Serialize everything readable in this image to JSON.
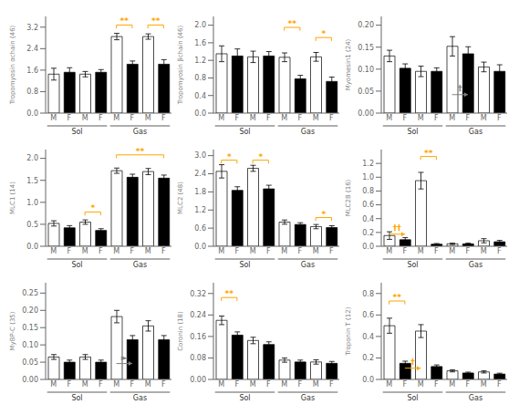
{
  "chart_data": [
    {
      "type": "bar",
      "ylabel": "Tropomyosin αchain (46)",
      "categories": [
        "M",
        "F",
        "M",
        "F",
        "M",
        "F",
        "M",
        "F"
      ],
      "values": [
        1.45,
        1.52,
        1.45,
        1.52,
        2.85,
        1.82,
        2.85,
        1.82
      ],
      "errors": [
        0.22,
        0.17,
        0.1,
        0.1,
        0.12,
        0.12,
        0.1,
        0.17
      ],
      "colors": [
        "white",
        "black",
        "white",
        "black",
        "white",
        "black",
        "white",
        "black"
      ],
      "ylim": [
        0.0,
        3.6
      ],
      "yticks": [
        {
          "value": 0.0,
          "label": "0.0"
        },
        0.8,
        1.6,
        2.4,
        3.2
      ],
      "grid": false,
      "annotations": [
        {
          "type": "group",
          "from": 0,
          "to": 3,
          "label": "Sol"
        },
        {
          "type": "group",
          "from": 4,
          "to": 7,
          "label": "Gas"
        },
        {
          "type": "bracket",
          "from": 4,
          "to": 5,
          "y": 3.28,
          "label": "**",
          "color": "orange"
        },
        {
          "type": "bracket",
          "from": 6,
          "to": 7,
          "y": 3.28,
          "label": "**",
          "color": "orange"
        }
      ]
    },
    {
      "type": "bar",
      "ylabel": "Tropomyosin βchain (46)",
      "categories": [
        "M",
        "F",
        "M",
        "F",
        "M",
        "F",
        "M",
        "F"
      ],
      "values": [
        1.35,
        1.3,
        1.28,
        1.3,
        1.27,
        0.78,
        1.28,
        0.72
      ],
      "errors": [
        0.18,
        0.16,
        0.13,
        0.1,
        0.1,
        0.08,
        0.1,
        0.1
      ],
      "colors": [
        "white",
        "black",
        "white",
        "black",
        "white",
        "black",
        "white",
        "black"
      ],
      "ylim": [
        0.0,
        2.2
      ],
      "yticks": [
        {
          "value": 0.0,
          "label": "0.0"
        },
        0.4,
        0.8,
        1.2,
        1.6,
        {
          "value": 2.0,
          "label": "2.0"
        }
      ],
      "grid": false,
      "annotations": [
        {
          "type": "group",
          "from": 0,
          "to": 3,
          "label": "Sol"
        },
        {
          "type": "group",
          "from": 4,
          "to": 7,
          "label": "Gas"
        },
        {
          "type": "bracket",
          "from": 4,
          "to": 5,
          "y": 1.95,
          "label": "**",
          "color": "orange"
        },
        {
          "type": "bracket",
          "from": 6,
          "to": 7,
          "y": 1.72,
          "label": "*",
          "color": "orange"
        }
      ]
    },
    {
      "type": "bar",
      "ylabel": "Myomesin1 (24)",
      "categories": [
        "M",
        "F",
        "M",
        "F",
        "M",
        "F",
        "M",
        "F"
      ],
      "values": [
        0.13,
        0.102,
        0.095,
        0.095,
        0.152,
        0.135,
        0.105,
        0.095
      ],
      "errors": [
        0.013,
        0.01,
        0.012,
        0.008,
        0.022,
        0.016,
        0.011,
        0.015
      ],
      "colors": [
        "white",
        "black",
        "white",
        "black",
        "white",
        "black",
        "white",
        "black"
      ],
      "ylim": [
        0.0,
        0.22
      ],
      "yticks": [
        {
          "value": 0.0,
          "label": "0.00"
        },
        0.05,
        {
          "value": 0.1,
          "label": "0.10"
        },
        0.15,
        {
          "value": 0.2,
          "label": "0.20"
        }
      ],
      "grid": false,
      "annotations": [
        {
          "type": "group",
          "from": 0,
          "to": 3,
          "label": "Sol"
        },
        {
          "type": "group",
          "from": 4,
          "to": 7,
          "label": "Gas"
        },
        {
          "type": "arrow",
          "from": 4,
          "to": 5,
          "y": 0.042,
          "label": "†",
          "color": "gray"
        }
      ]
    },
    {
      "type": "bar",
      "ylabel": "MLC1 (14)",
      "categories": [
        "M",
        "F",
        "M",
        "F",
        "M",
        "F",
        "M",
        "F"
      ],
      "values": [
        0.52,
        0.42,
        0.55,
        0.36,
        1.72,
        1.57,
        1.7,
        1.55
      ],
      "errors": [
        0.06,
        0.05,
        0.05,
        0.04,
        0.06,
        0.07,
        0.07,
        0.07
      ],
      "colors": [
        "white",
        "black",
        "white",
        "black",
        "white",
        "black",
        "white",
        "black"
      ],
      "ylim": [
        0.0,
        2.2
      ],
      "yticks": [
        {
          "value": 0.0,
          "label": "0.0"
        },
        0.5,
        {
          "value": 1.0,
          "label": "1.0"
        },
        1.5,
        {
          "value": 2.0,
          "label": "2.0"
        }
      ],
      "grid": false,
      "annotations": [
        {
          "type": "group",
          "from": 0,
          "to": 3,
          "label": "Sol"
        },
        {
          "type": "group",
          "from": 4,
          "to": 7,
          "label": "Gas"
        },
        {
          "type": "bracket",
          "from": 2,
          "to": 3,
          "y": 0.78,
          "label": "*",
          "color": "orange"
        },
        {
          "type": "bracket",
          "from": 4,
          "to": 7,
          "y": 2.08,
          "label": "**",
          "color": "orange"
        }
      ]
    },
    {
      "type": "bar",
      "ylabel": "MLC2 (48)",
      "categories": [
        "M",
        "F",
        "M",
        "F",
        "M",
        "F",
        "M",
        "F"
      ],
      "values": [
        2.48,
        1.85,
        2.58,
        1.9,
        0.8,
        0.72,
        0.65,
        0.62
      ],
      "errors": [
        0.22,
        0.12,
        0.1,
        0.12,
        0.07,
        0.06,
        0.07,
        0.06
      ],
      "colors": [
        "white",
        "black",
        "white",
        "black",
        "white",
        "black",
        "white",
        "black"
      ],
      "ylim": [
        0.0,
        3.2
      ],
      "yticks": [
        {
          "value": 0.0,
          "label": "0.0"
        },
        0.6,
        1.2,
        1.8,
        2.4,
        {
          "value": 3.0,
          "label": "3.0"
        }
      ],
      "grid": false,
      "annotations": [
        {
          "type": "group",
          "from": 0,
          "to": 3,
          "label": "Sol"
        },
        {
          "type": "group",
          "from": 4,
          "to": 7,
          "label": "Gas"
        },
        {
          "type": "bracket",
          "from": 0,
          "to": 1,
          "y": 2.85,
          "label": "*",
          "color": "orange"
        },
        {
          "type": "bracket",
          "from": 2,
          "to": 3,
          "y": 2.85,
          "label": "*",
          "color": "orange"
        },
        {
          "type": "bracket",
          "from": 6,
          "to": 7,
          "y": 0.95,
          "label": "*",
          "color": "orange"
        }
      ]
    },
    {
      "type": "bar",
      "ylabel": "MLC2B (16)",
      "categories": [
        "M",
        "F",
        "M",
        "F",
        "M",
        "F",
        "M",
        "F"
      ],
      "values": [
        0.155,
        0.095,
        0.95,
        0.03,
        0.035,
        0.035,
        0.08,
        0.065
      ],
      "errors": [
        0.055,
        0.03,
        0.12,
        0.01,
        0.01,
        0.01,
        0.03,
        0.02
      ],
      "colors": [
        "white",
        "black",
        "white",
        "black",
        "white",
        "black",
        "white",
        "black"
      ],
      "ylim": [
        0.0,
        1.4
      ],
      "yticks": [
        {
          "value": 0.0,
          "label": "0.0"
        },
        0.2,
        0.4,
        0.6,
        0.8,
        {
          "value": 1.0,
          "label": "1.0"
        },
        1.2
      ],
      "grid": false,
      "annotations": [
        {
          "type": "group",
          "from": 0,
          "to": 3,
          "label": "Sol"
        },
        {
          "type": "group",
          "from": 4,
          "to": 7,
          "label": "Gas"
        },
        {
          "type": "bracket",
          "from": 2,
          "to": 3,
          "y": 1.3,
          "label": "**",
          "color": "orange"
        },
        {
          "type": "arrow",
          "from": 0,
          "to": 1,
          "y": 0.175,
          "label": "††",
          "color": "orange"
        }
      ]
    },
    {
      "type": "bar",
      "ylabel": "MyBP-C (35)",
      "categories": [
        "M",
        "F",
        "M",
        "F",
        "M",
        "F",
        "M",
        "F"
      ],
      "values": [
        0.065,
        0.05,
        0.065,
        0.05,
        0.182,
        0.115,
        0.155,
        0.115
      ],
      "errors": [
        0.007,
        0.006,
        0.007,
        0.006,
        0.018,
        0.012,
        0.015,
        0.012
      ],
      "colors": [
        "white",
        "black",
        "white",
        "black",
        "white",
        "black",
        "white",
        "black"
      ],
      "ylim": [
        0.0,
        0.28
      ],
      "yticks": [
        {
          "value": 0.0,
          "label": "0.00"
        },
        0.05,
        {
          "value": 0.1,
          "label": "0.10"
        },
        0.15,
        {
          "value": 0.2,
          "label": "0.20"
        },
        0.25
      ],
      "grid": false,
      "annotations": [
        {
          "type": "group",
          "from": 0,
          "to": 3,
          "label": "Sol"
        },
        {
          "type": "group",
          "from": 4,
          "to": 7,
          "label": "Gas"
        },
        {
          "type": "arrow",
          "from": 4,
          "to": 5,
          "y": 0.046,
          "label": "►",
          "color": "gray"
        }
      ]
    },
    {
      "type": "bar",
      "ylabel": "Coronin (18)",
      "categories": [
        "M",
        "F",
        "M",
        "F",
        "M",
        "F",
        "M",
        "F"
      ],
      "values": [
        0.22,
        0.165,
        0.145,
        0.13,
        0.072,
        0.065,
        0.065,
        0.06
      ],
      "errors": [
        0.016,
        0.012,
        0.012,
        0.01,
        0.008,
        0.007,
        0.008,
        0.007
      ],
      "colors": [
        "white",
        "black",
        "white",
        "black",
        "white",
        "black",
        "white",
        "black"
      ],
      "ylim": [
        0.0,
        0.36
      ],
      "yticks": [
        {
          "value": 0.0,
          "label": "0.00"
        },
        0.08,
        0.16,
        0.24,
        0.32
      ],
      "grid": false,
      "annotations": [
        {
          "type": "group",
          "from": 0,
          "to": 3,
          "label": "Sol"
        },
        {
          "type": "group",
          "from": 4,
          "to": 7,
          "label": "Gas"
        },
        {
          "type": "bracket",
          "from": 0,
          "to": 1,
          "y": 0.305,
          "label": "**",
          "color": "orange"
        }
      ]
    },
    {
      "type": "bar",
      "ylabel": "Troponin T (12)",
      "categories": [
        "M",
        "F",
        "M",
        "F",
        "M",
        "F",
        "M",
        "F"
      ],
      "values": [
        0.5,
        0.15,
        0.45,
        0.12,
        0.08,
        0.06,
        0.07,
        0.05
      ],
      "errors": [
        0.07,
        0.02,
        0.06,
        0.015,
        0.01,
        0.008,
        0.01,
        0.008
      ],
      "colors": [
        "white",
        "black",
        "white",
        "black",
        "white",
        "black",
        "white",
        "black"
      ],
      "ylim": [
        0.0,
        0.9
      ],
      "yticks": [
        {
          "value": 0.0,
          "label": "0.0"
        },
        0.2,
        0.4,
        0.6,
        0.8
      ],
      "grid": false,
      "annotations": [
        {
          "type": "group",
          "from": 0,
          "to": 3,
          "label": "Sol"
        },
        {
          "type": "group",
          "from": 4,
          "to": 7,
          "label": "Gas"
        },
        {
          "type": "bracket",
          "from": 0,
          "to": 1,
          "y": 0.73,
          "label": "**",
          "color": "orange"
        },
        {
          "type": "arrow",
          "from": 1,
          "to": 2,
          "y": 0.105,
          "label": "†",
          "color": "orange"
        }
      ]
    }
  ]
}
